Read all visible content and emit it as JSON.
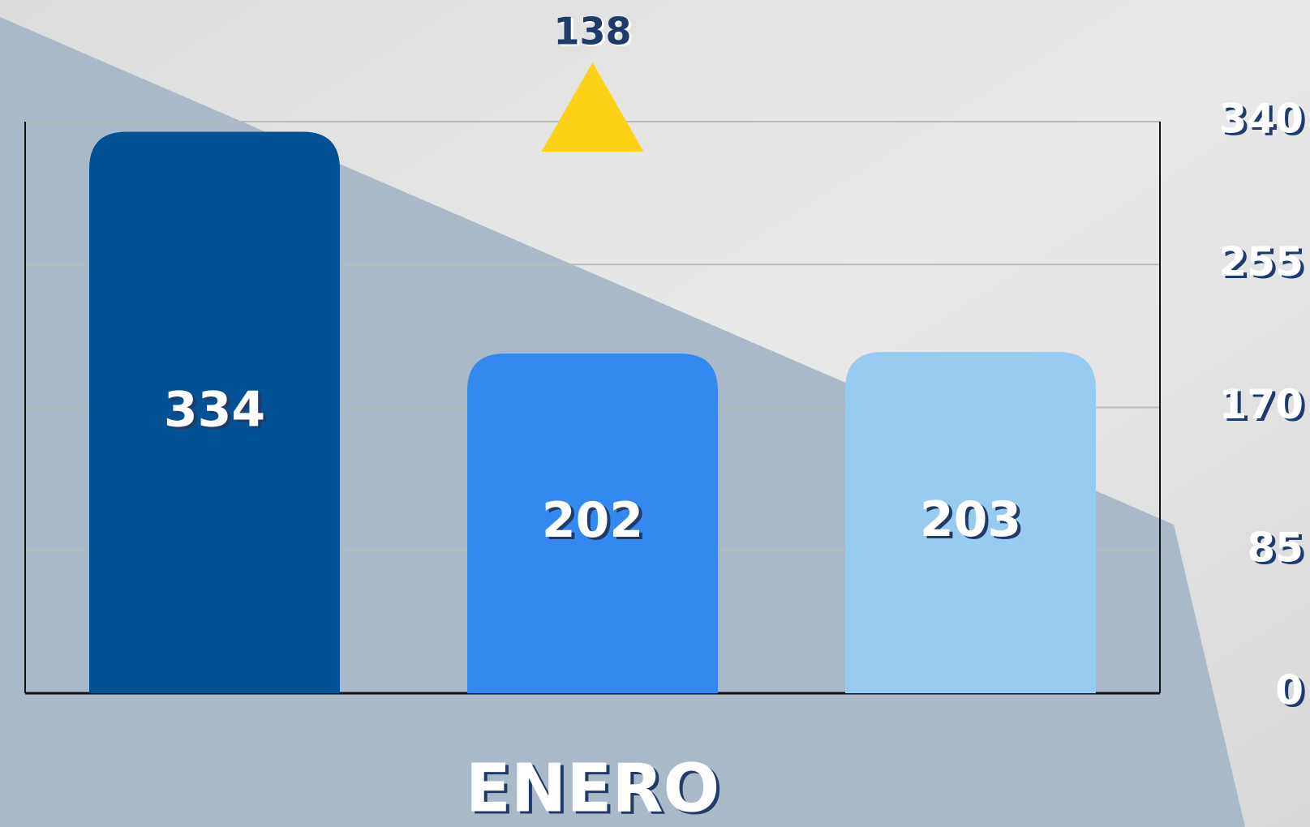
{
  "chart_data": {
    "type": "bar",
    "categories": [
      "ENERO"
    ],
    "series": [
      {
        "color": "#035195",
        "values": [
          334
        ]
      },
      {
        "color": "#3489f0",
        "values": [
          202
        ]
      },
      {
        "color": "#98cbf0",
        "values": [
          203
        ]
      }
    ],
    "ylim": [
      0,
      340
    ],
    "yticks": [
      0,
      85,
      170,
      255,
      340
    ],
    "grid": true,
    "y_axis_side": "right",
    "annotation": {
      "value": 138,
      "marker": "triangle-up",
      "color": "#fcd116"
    }
  }
}
